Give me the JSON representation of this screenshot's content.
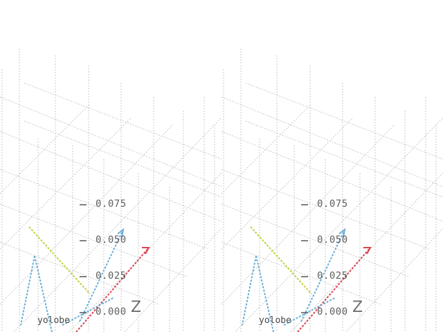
{
  "scene": {
    "z_axis_label": "Z",
    "z_ticks": [
      "0.075",
      "0.050",
      "0.025",
      "0.000"
    ],
    "object_label": "yolobe",
    "colors": {
      "grid": "#c8c8c8",
      "blue_axis": "#6aaed6",
      "red_axis": "#d9444f",
      "yellow_axis": "#c3d23a",
      "text": "#444444"
    }
  }
}
